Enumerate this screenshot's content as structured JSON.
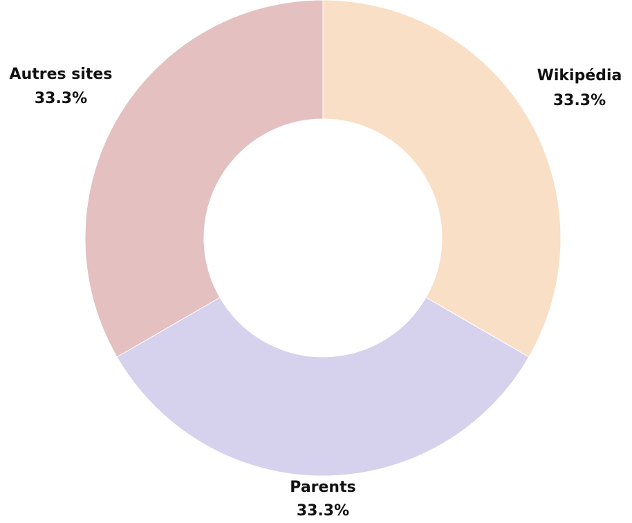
{
  "chart_data": {
    "type": "pie",
    "donut": true,
    "categories": [
      "Wikipédia",
      "Parents",
      "Autres sites"
    ],
    "values": [
      33.3,
      33.3,
      33.3
    ],
    "value_labels": [
      "33.3%",
      "33.3%",
      "33.3%"
    ],
    "colors": [
      "#f9dfc5",
      "#d6d1ec",
      "#e4c0c0"
    ],
    "legend": "none"
  }
}
